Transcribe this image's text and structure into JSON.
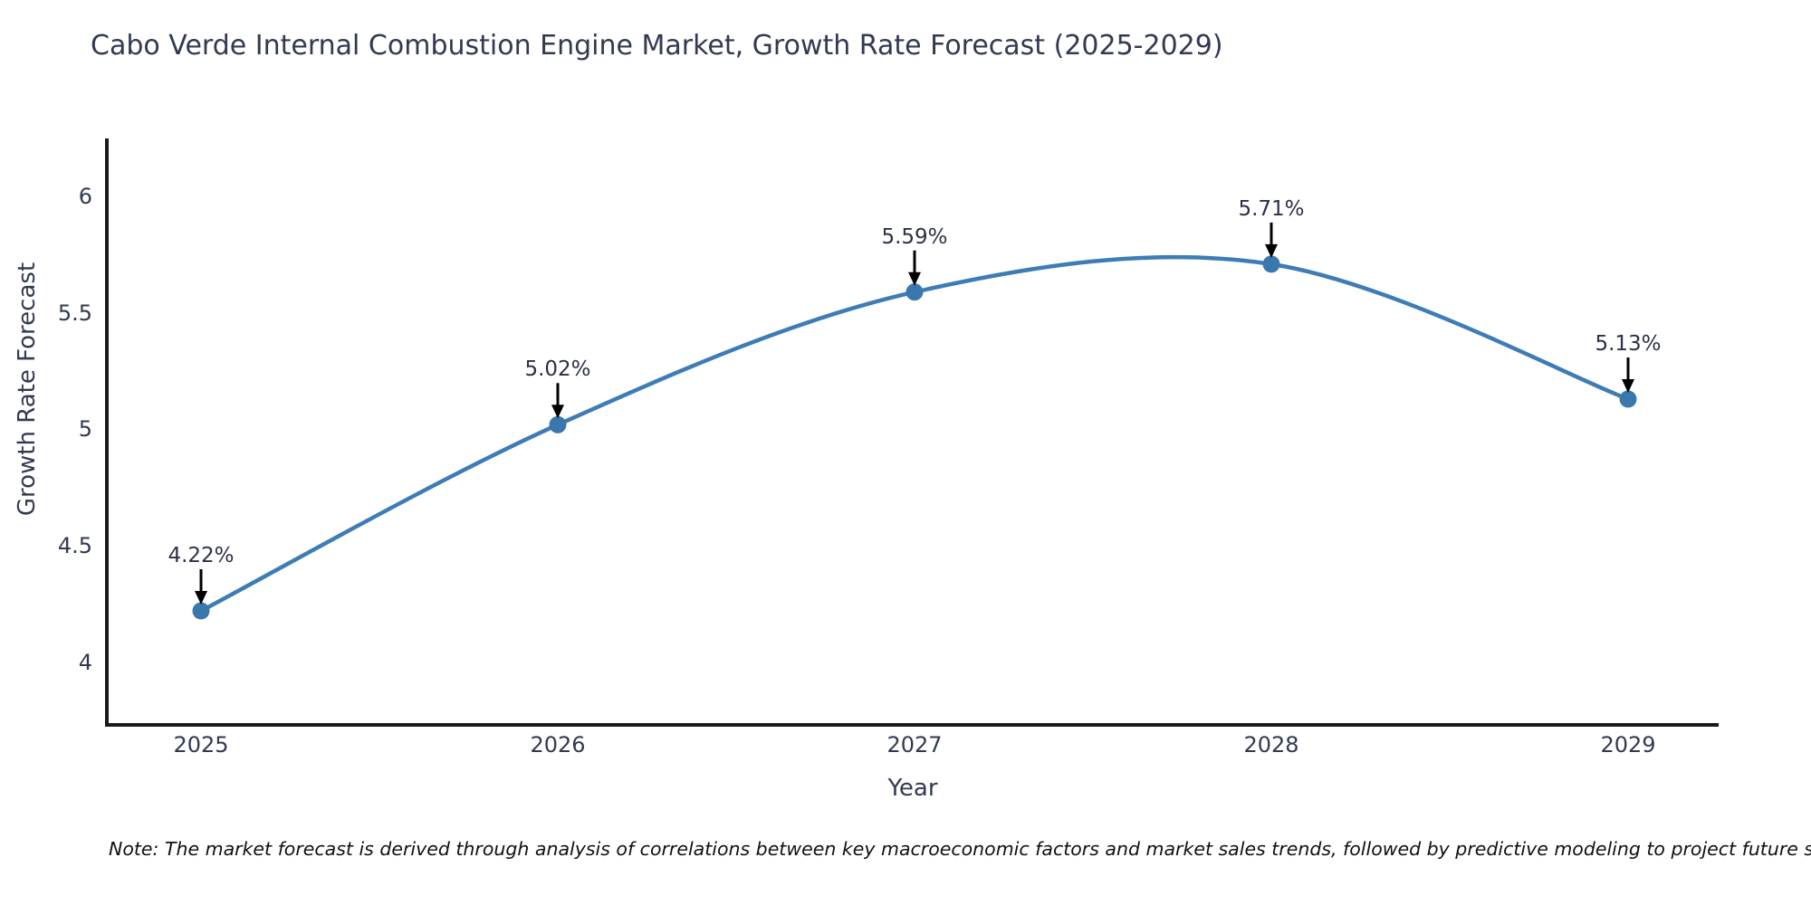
{
  "chart_data": {
    "type": "line",
    "title": "Cabo Verde Internal Combustion Engine Market, Growth Rate Forecast (2025-2029)",
    "xlabel": "Year",
    "ylabel": "Growth Rate Forecast",
    "categories": [
      "2025",
      "2026",
      "2027",
      "2028",
      "2029"
    ],
    "x": [
      2025,
      2026,
      2027,
      2028,
      2029
    ],
    "values": [
      4.22,
      5.02,
      5.59,
      5.71,
      5.13
    ],
    "point_labels": [
      "4.22%",
      "5.02%",
      "5.59%",
      "5.71%",
      "5.13%"
    ],
    "yticks": [
      4,
      4.5,
      5,
      5.5,
      6
    ],
    "ytick_labels": [
      "4",
      "4.5",
      "5",
      "5.5",
      "6"
    ],
    "ylim": [
      3.73,
      6.25
    ],
    "line_shape": "spline",
    "grid": false,
    "legend_position": "none",
    "annotations_style": "label with black arrow pointing down to marker",
    "colors": {
      "line": "#3d7cb5",
      "marker": "#3a77ad",
      "text": "#323a52",
      "axis_line": "#1a1a1a",
      "annotation_arrow": "#000000",
      "note_text": "#111111",
      "background": "#ffffff"
    },
    "note": "Note: The market forecast is derived through analysis of correlations between key macroeconomic factors and market sales trends, followed by predictive modeling to project future sales"
  }
}
